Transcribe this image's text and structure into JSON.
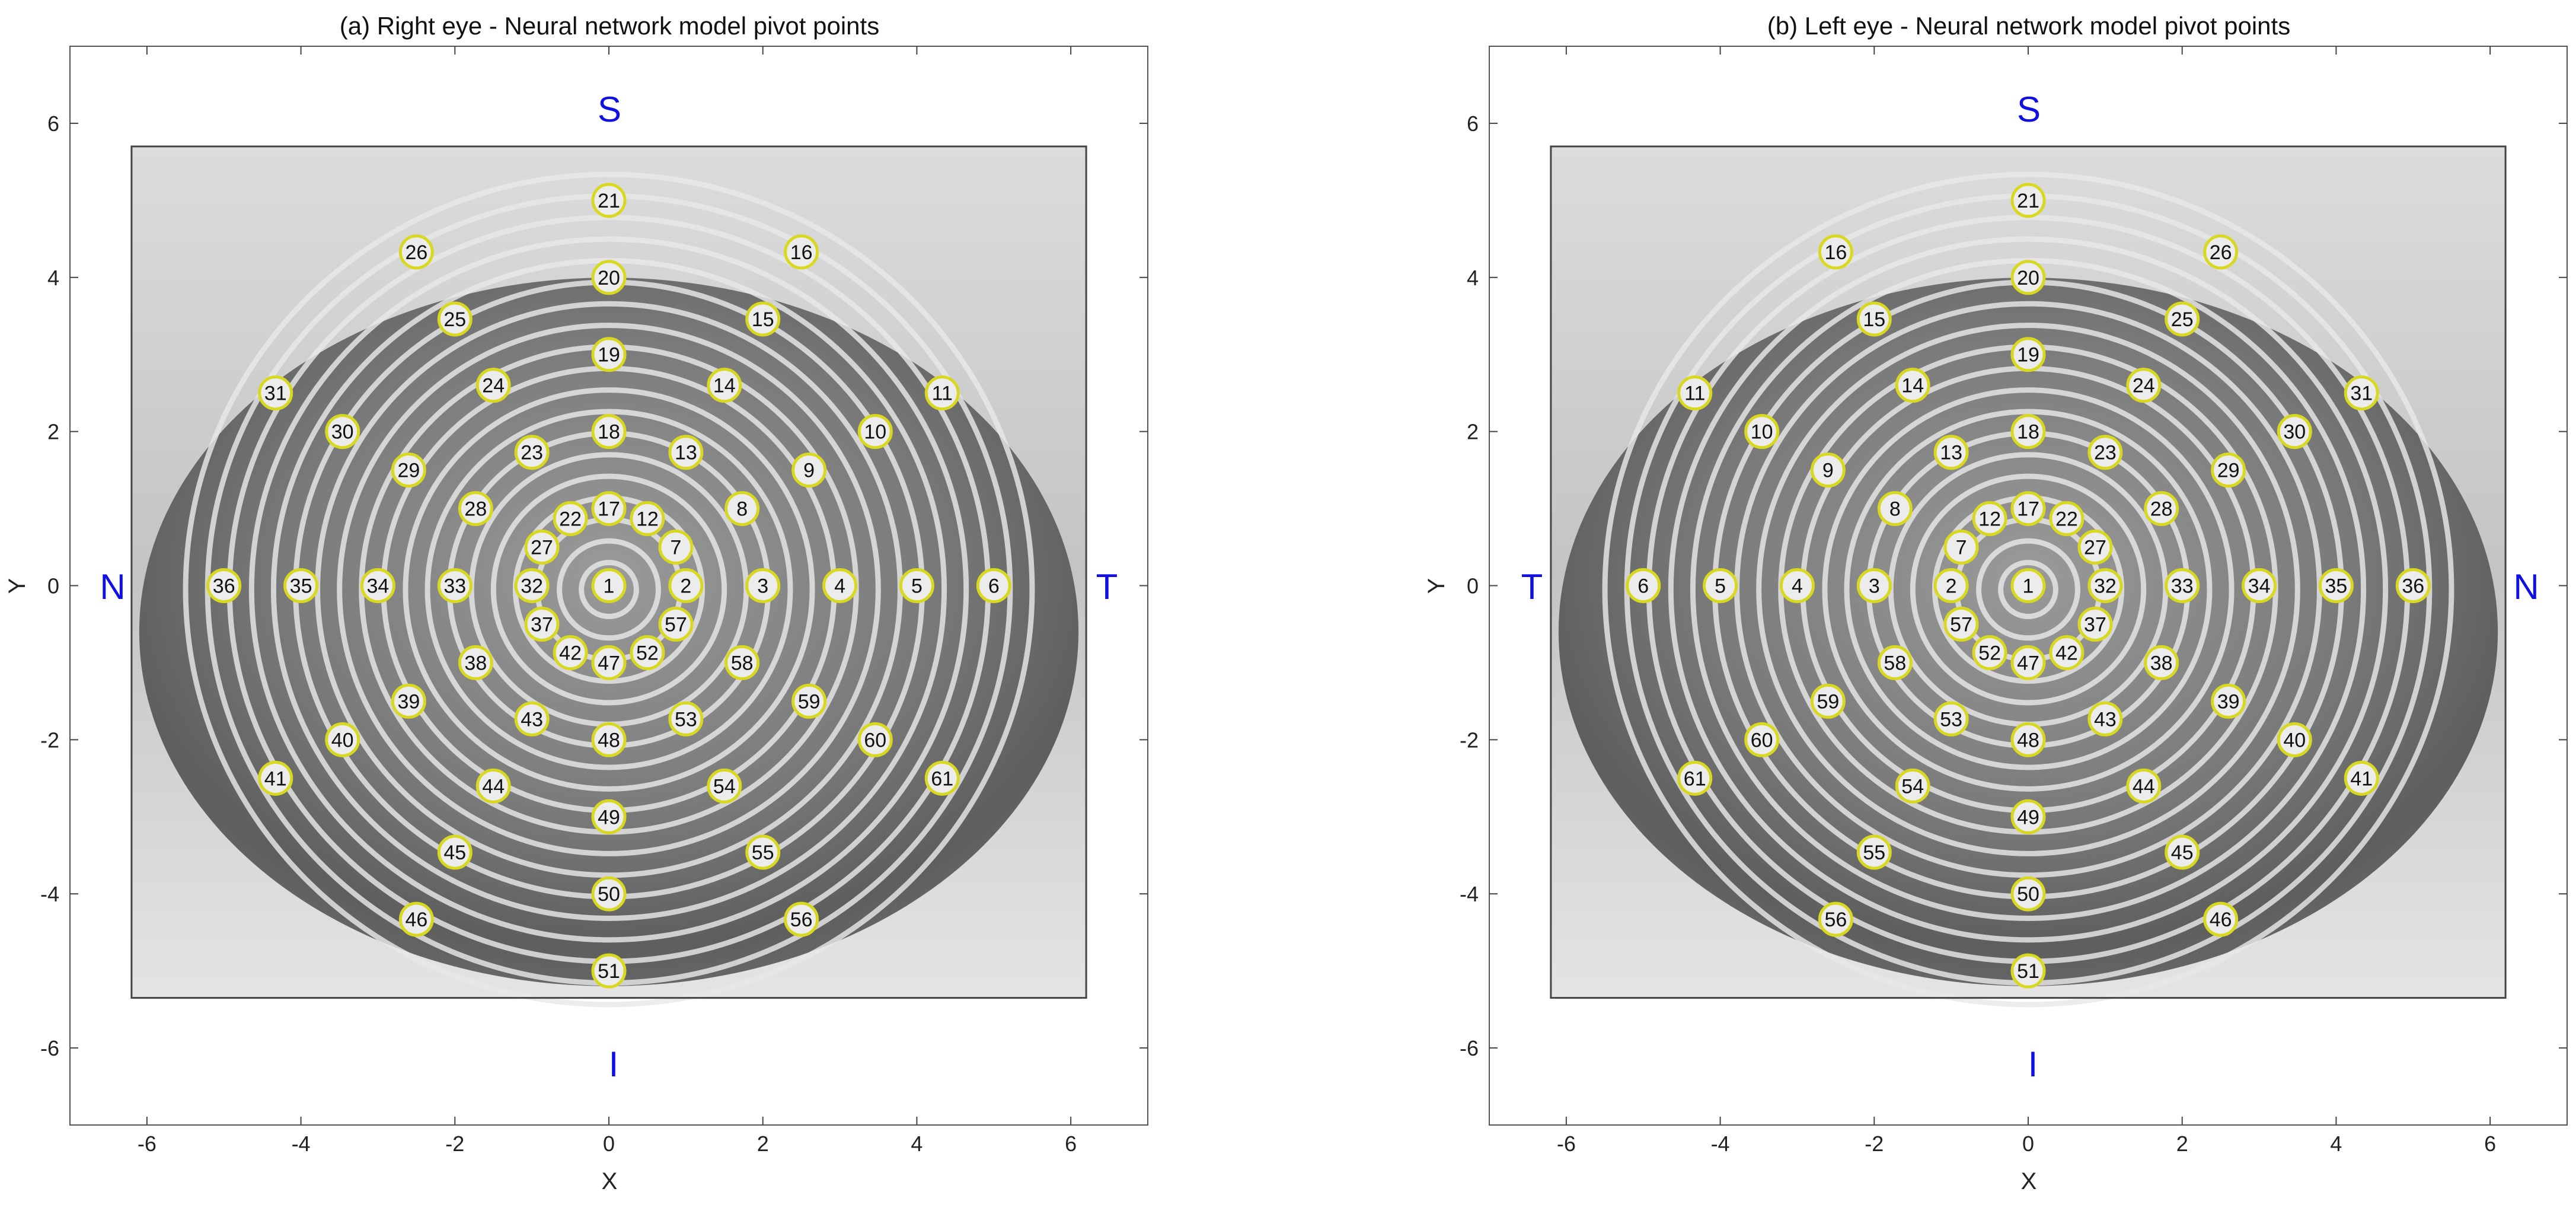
{
  "figure": {
    "panels": [
      {
        "title": "(a) Right eye - Neural network model pivot points",
        "xlabel": "X",
        "ylabel": "Y",
        "orient": {
          "top": "S",
          "bottom": "I",
          "left": "N",
          "right": "T"
        }
      },
      {
        "title": "(b) Left eye - Neural network model pivot points",
        "xlabel": "X",
        "ylabel": "Y",
        "orient": {
          "top": "S",
          "bottom": "I",
          "left": "T",
          "right": "N"
        }
      }
    ]
  },
  "colors": {
    "marker_edge": "#d8d820",
    "marker_fill": "#ececec",
    "orientation_text": "#1010e0",
    "axis": "#222222"
  },
  "chart_data": [
    {
      "type": "scatter",
      "title": "(a) Right eye - Neural network model pivot points",
      "xlabel": "X",
      "ylabel": "Y",
      "xlim": [
        -7,
        7
      ],
      "ylim": [
        -7,
        7
      ],
      "xticks": [
        -6,
        -4,
        -2,
        0,
        2,
        4,
        6
      ],
      "yticks": [
        -6,
        -4,
        -2,
        0,
        2,
        4,
        6
      ],
      "grid": false,
      "background": "grayscale eye image with concentric Placido rings",
      "orientation_labels": {
        "top": "S",
        "bottom": "I",
        "left": "N",
        "right": "T"
      },
      "points": [
        {
          "id": "1",
          "x": 0,
          "y": 0
        },
        {
          "id": "2",
          "x": 1,
          "y": 0
        },
        {
          "id": "3",
          "x": 2,
          "y": 0
        },
        {
          "id": "4",
          "x": 3,
          "y": 0
        },
        {
          "id": "5",
          "x": 4,
          "y": 0
        },
        {
          "id": "6",
          "x": 5,
          "y": 0
        },
        {
          "id": "7",
          "x": 0.87,
          "y": 0.5
        },
        {
          "id": "8",
          "x": 1.73,
          "y": 1.0
        },
        {
          "id": "9",
          "x": 2.6,
          "y": 1.5
        },
        {
          "id": "10",
          "x": 3.46,
          "y": 2.0
        },
        {
          "id": "11",
          "x": 4.33,
          "y": 2.5
        },
        {
          "id": "12",
          "x": 0.5,
          "y": 0.87
        },
        {
          "id": "13",
          "x": 1.0,
          "y": 1.73
        },
        {
          "id": "14",
          "x": 1.5,
          "y": 2.6
        },
        {
          "id": "15",
          "x": 2.0,
          "y": 3.46
        },
        {
          "id": "16",
          "x": 2.5,
          "y": 4.33
        },
        {
          "id": "17",
          "x": 0,
          "y": 1
        },
        {
          "id": "18",
          "x": 0,
          "y": 2
        },
        {
          "id": "19",
          "x": 0,
          "y": 3
        },
        {
          "id": "20",
          "x": 0,
          "y": 4
        },
        {
          "id": "21",
          "x": 0,
          "y": 5
        },
        {
          "id": "22",
          "x": -0.5,
          "y": 0.87
        },
        {
          "id": "23",
          "x": -1.0,
          "y": 1.73
        },
        {
          "id": "24",
          "x": -1.5,
          "y": 2.6
        },
        {
          "id": "25",
          "x": -2.0,
          "y": 3.46
        },
        {
          "id": "26",
          "x": -2.5,
          "y": 4.33
        },
        {
          "id": "27",
          "x": -0.87,
          "y": 0.5
        },
        {
          "id": "28",
          "x": -1.73,
          "y": 1.0
        },
        {
          "id": "29",
          "x": -2.6,
          "y": 1.5
        },
        {
          "id": "30",
          "x": -3.46,
          "y": 2.0
        },
        {
          "id": "31",
          "x": -4.33,
          "y": 2.5
        },
        {
          "id": "32",
          "x": -1,
          "y": 0
        },
        {
          "id": "33",
          "x": -2,
          "y": 0
        },
        {
          "id": "34",
          "x": -3,
          "y": 0
        },
        {
          "id": "35",
          "x": -4,
          "y": 0
        },
        {
          "id": "36",
          "x": -5,
          "y": 0
        },
        {
          "id": "37",
          "x": -0.87,
          "y": -0.5
        },
        {
          "id": "38",
          "x": -1.73,
          "y": -1.0
        },
        {
          "id": "39",
          "x": -2.6,
          "y": -1.5
        },
        {
          "id": "40",
          "x": -3.46,
          "y": -2.0
        },
        {
          "id": "41",
          "x": -4.33,
          "y": -2.5
        },
        {
          "id": "42",
          "x": -0.5,
          "y": -0.87
        },
        {
          "id": "43",
          "x": -1.0,
          "y": -1.73
        },
        {
          "id": "44",
          "x": -1.5,
          "y": -2.6
        },
        {
          "id": "45",
          "x": -2.0,
          "y": -3.46
        },
        {
          "id": "46",
          "x": -2.5,
          "y": -4.33
        },
        {
          "id": "47",
          "x": 0,
          "y": -1
        },
        {
          "id": "48",
          "x": 0,
          "y": -2
        },
        {
          "id": "49",
          "x": 0,
          "y": -3
        },
        {
          "id": "50",
          "x": 0,
          "y": -4
        },
        {
          "id": "51",
          "x": 0,
          "y": -5
        },
        {
          "id": "52",
          "x": 0.5,
          "y": -0.87
        },
        {
          "id": "53",
          "x": 1.0,
          "y": -1.73
        },
        {
          "id": "54",
          "x": 1.5,
          "y": -2.6
        },
        {
          "id": "55",
          "x": 2.0,
          "y": -3.46
        },
        {
          "id": "56",
          "x": 2.5,
          "y": -4.33
        },
        {
          "id": "57",
          "x": 0.87,
          "y": -0.5
        },
        {
          "id": "58",
          "x": 1.73,
          "y": -1.0
        },
        {
          "id": "59",
          "x": 2.6,
          "y": -1.5
        },
        {
          "id": "60",
          "x": 3.46,
          "y": -2.0
        },
        {
          "id": "61",
          "x": 4.33,
          "y": -2.5
        }
      ]
    },
    {
      "type": "scatter",
      "title": "(b) Left eye - Neural network model pivot points",
      "xlabel": "X",
      "ylabel": "Y",
      "xlim": [
        -7,
        7
      ],
      "ylim": [
        -7,
        7
      ],
      "xticks": [
        -6,
        -4,
        -2,
        0,
        2,
        4,
        6
      ],
      "yticks": [
        -6,
        -4,
        -2,
        0,
        2,
        4,
        6
      ],
      "grid": false,
      "background": "grayscale eye image with concentric Placido rings",
      "orientation_labels": {
        "top": "S",
        "bottom": "I",
        "left": "T",
        "right": "N"
      },
      "points": [
        {
          "id": "1",
          "x": 0,
          "y": 0
        },
        {
          "id": "2",
          "x": -1,
          "y": 0
        },
        {
          "id": "3",
          "x": -2,
          "y": 0
        },
        {
          "id": "4",
          "x": -3,
          "y": 0
        },
        {
          "id": "5",
          "x": -4,
          "y": 0
        },
        {
          "id": "6",
          "x": -5,
          "y": 0
        },
        {
          "id": "7",
          "x": -0.87,
          "y": 0.5
        },
        {
          "id": "8",
          "x": -1.73,
          "y": 1.0
        },
        {
          "id": "9",
          "x": -2.6,
          "y": 1.5
        },
        {
          "id": "10",
          "x": -3.46,
          "y": 2.0
        },
        {
          "id": "11",
          "x": -4.33,
          "y": 2.5
        },
        {
          "id": "12",
          "x": -0.5,
          "y": 0.87
        },
        {
          "id": "13",
          "x": -1.0,
          "y": 1.73
        },
        {
          "id": "14",
          "x": -1.5,
          "y": 2.6
        },
        {
          "id": "15",
          "x": -2.0,
          "y": 3.46
        },
        {
          "id": "16",
          "x": -2.5,
          "y": 4.33
        },
        {
          "id": "17",
          "x": 0,
          "y": 1
        },
        {
          "id": "18",
          "x": 0,
          "y": 2
        },
        {
          "id": "19",
          "x": 0,
          "y": 3
        },
        {
          "id": "20",
          "x": 0,
          "y": 4
        },
        {
          "id": "21",
          "x": 0,
          "y": 5
        },
        {
          "id": "22",
          "x": 0.5,
          "y": 0.87
        },
        {
          "id": "23",
          "x": 1.0,
          "y": 1.73
        },
        {
          "id": "24",
          "x": 1.5,
          "y": 2.6
        },
        {
          "id": "25",
          "x": 2.0,
          "y": 3.46
        },
        {
          "id": "26",
          "x": 2.5,
          "y": 4.33
        },
        {
          "id": "27",
          "x": 0.87,
          "y": 0.5
        },
        {
          "id": "28",
          "x": 1.73,
          "y": 1.0
        },
        {
          "id": "29",
          "x": 2.6,
          "y": 1.5
        },
        {
          "id": "30",
          "x": 3.46,
          "y": 2.0
        },
        {
          "id": "31",
          "x": 4.33,
          "y": 2.5
        },
        {
          "id": "32",
          "x": 1,
          "y": 0
        },
        {
          "id": "33",
          "x": 2,
          "y": 0
        },
        {
          "id": "34",
          "x": 3,
          "y": 0
        },
        {
          "id": "35",
          "x": 4,
          "y": 0
        },
        {
          "id": "36",
          "x": 5,
          "y": 0
        },
        {
          "id": "37",
          "x": 0.87,
          "y": -0.5
        },
        {
          "id": "38",
          "x": 1.73,
          "y": -1.0
        },
        {
          "id": "39",
          "x": 2.6,
          "y": -1.5
        },
        {
          "id": "40",
          "x": 3.46,
          "y": -2.0
        },
        {
          "id": "41",
          "x": 4.33,
          "y": -2.5
        },
        {
          "id": "42",
          "x": 0.5,
          "y": -0.87
        },
        {
          "id": "43",
          "x": 1.0,
          "y": -1.73
        },
        {
          "id": "44",
          "x": 1.5,
          "y": -2.6
        },
        {
          "id": "45",
          "x": 2.0,
          "y": -3.46
        },
        {
          "id": "46",
          "x": 2.5,
          "y": -4.33
        },
        {
          "id": "47",
          "x": 0,
          "y": -1
        },
        {
          "id": "48",
          "x": 0,
          "y": -2
        },
        {
          "id": "49",
          "x": 0,
          "y": -3
        },
        {
          "id": "50",
          "x": 0,
          "y": -4
        },
        {
          "id": "51",
          "x": 0,
          "y": -5
        },
        {
          "id": "52",
          "x": -0.5,
          "y": -0.87
        },
        {
          "id": "53",
          "x": -1.0,
          "y": -1.73
        },
        {
          "id": "54",
          "x": -1.5,
          "y": -2.6
        },
        {
          "id": "55",
          "x": -2.0,
          "y": -3.46
        },
        {
          "id": "56",
          "x": -2.5,
          "y": -4.33
        },
        {
          "id": "57",
          "x": -0.87,
          "y": -0.5
        },
        {
          "id": "58",
          "x": -1.73,
          "y": -1.0
        },
        {
          "id": "59",
          "x": -2.6,
          "y": -1.5
        },
        {
          "id": "60",
          "x": -3.46,
          "y": -2.0
        },
        {
          "id": "61",
          "x": -4.33,
          "y": -2.5
        }
      ]
    }
  ]
}
